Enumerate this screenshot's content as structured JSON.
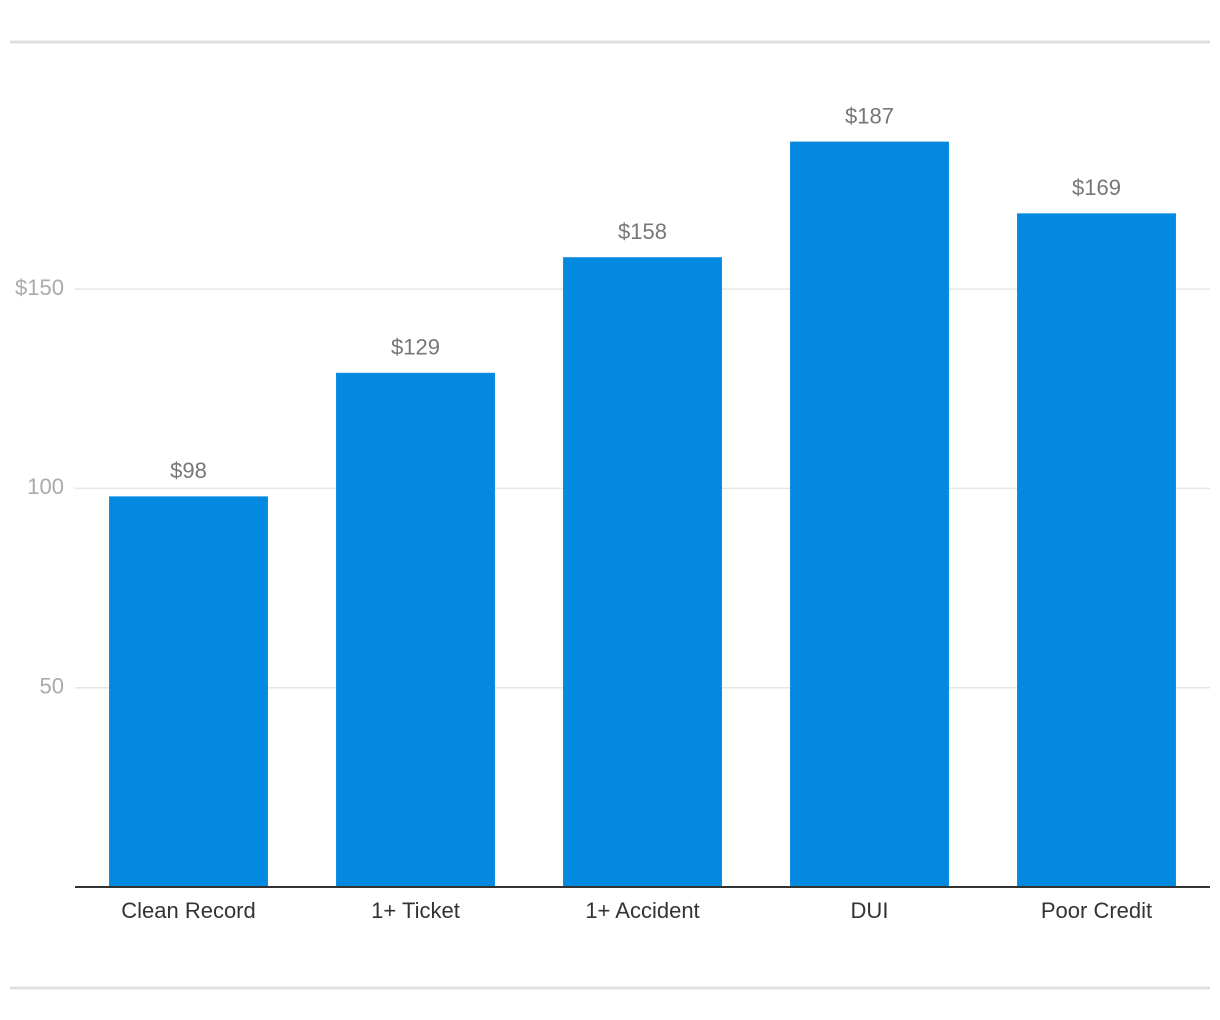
{
  "chart_data": {
    "type": "bar",
    "categories": [
      "Clean Record",
      "1+ Ticket",
      "1+ Accident",
      "DUI",
      "Poor Credit"
    ],
    "values": [
      98,
      129,
      158,
      187,
      169
    ],
    "value_labels": [
      "$98",
      "$129",
      "$158",
      "$187",
      "$169"
    ],
    "color": "#038ae0",
    "ylim": [
      0,
      200
    ],
    "yticks": [
      50,
      100,
      {
        "value": 150,
        "label": "$150"
      }
    ],
    "grid": true
  }
}
